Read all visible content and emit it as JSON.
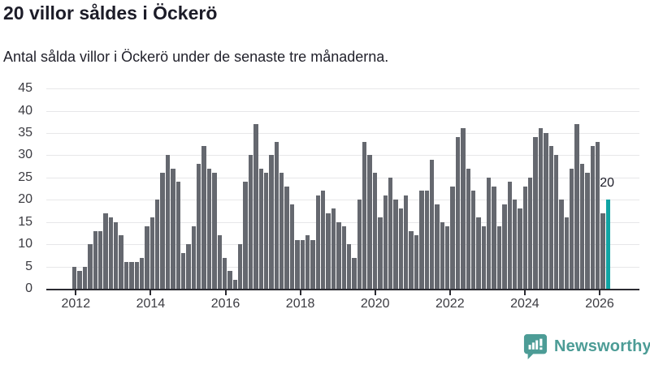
{
  "header": {
    "title": "20 villor såldes i Öckerö",
    "subtitle": "Antal sålda villor i Öckerö under de senaste tre månaderna."
  },
  "chart_data": {
    "type": "bar",
    "title": "20 villor såldes i Öckerö",
    "subtitle": "Antal sålda villor i Öckerö under de senaste tre månaderna.",
    "ylabel": "",
    "xlabel": "",
    "ylim": [
      0,
      45
    ],
    "yticks": [
      0,
      5,
      10,
      15,
      20,
      25,
      30,
      35,
      40,
      45
    ],
    "grid": "horizontal",
    "year_labels": [
      "2012",
      "2014",
      "2016",
      "2018",
      "2020",
      "2022",
      "2024",
      "2026"
    ],
    "x_range_years": [
      2012,
      2026.2
    ],
    "values": [
      5,
      4,
      5,
      10,
      13,
      13,
      17,
      16,
      15,
      12,
      6,
      6,
      6,
      7,
      14,
      16,
      20,
      26,
      30,
      27,
      24,
      8,
      10,
      14,
      28,
      32,
      27,
      26,
      12,
      7,
      4,
      2,
      10,
      24,
      30,
      37,
      27,
      26,
      30,
      33,
      26,
      23,
      19,
      11,
      11,
      12,
      11,
      21,
      22,
      17,
      18,
      15,
      14,
      10,
      7,
      20,
      33,
      30,
      26,
      16,
      21,
      25,
      20,
      18,
      21,
      13,
      12,
      22,
      22,
      29,
      19,
      15,
      14,
      23,
      34,
      36,
      27,
      22,
      16,
      14,
      25,
      23,
      14,
      19,
      24,
      20,
      18,
      23,
      25,
      34,
      36,
      35,
      32,
      30,
      20,
      16,
      27,
      37,
      28,
      26,
      32,
      33,
      17,
      20
    ],
    "highlight_index": 103,
    "highlight_value": 20,
    "annotation_label": "20",
    "colors": {
      "bar": "#65686f",
      "highlight": "#11a4a4",
      "grid": "#e7e7e9",
      "axis": "#2b2b31",
      "text": "#3b3b41"
    }
  },
  "footer": {
    "brand": "Newsworthy",
    "brand_color": "#4c9c96",
    "icon": "newsworthy-chart-bubble-icon"
  }
}
